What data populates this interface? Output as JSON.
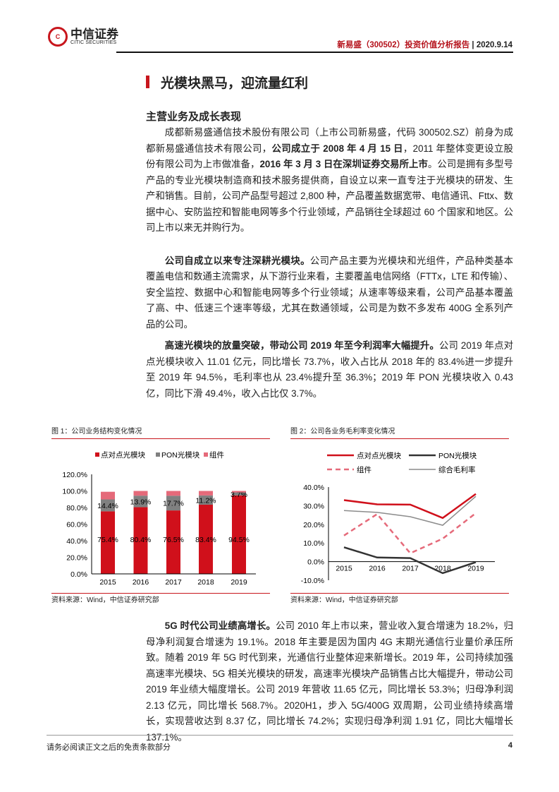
{
  "header": {
    "logo_cn": "中信证券",
    "logo_en": "CITIC SECURITIES",
    "report": "新易盛（300502）投资价值分析报告",
    "sep": "|",
    "date": "2020.9.14"
  },
  "title": "光模块黑马，迎流量红利",
  "section": "主营业务及成长表现",
  "paragraphs": [
    [
      {
        "t": "成都新易盛通信技术股份有限公司（上市公司新易盛，代码 300502.SZ）前身为成都新易盛通信技术有限公司，"
      },
      {
        "t": "公司成立于 2008 年 4 月 15 日",
        "b": true
      },
      {
        "t": "，2011 年整体变更设立股份有限公司为上市做准备，"
      },
      {
        "t": "2016 年 3 月 3 日在深圳证券交易所上市",
        "b": true
      },
      {
        "t": "。公司是拥有多型号产品的专业光模块制造商和技术服务提供商，自设立以来一直专注于光模块的研发、生产和销售。目前，公司产品型号超过 2,800 种，产品覆盖数据宽带、电信通讯、Fttx、数据中心、安防监控和智能电网等多个行业领域，产品销往全球超过 60 个国家和地区。公司上市以来无并购行为。"
      }
    ],
    [
      {
        "t": "公司自成立以来专注深耕光模块。",
        "b": true
      },
      {
        "t": "公司产品主要为光模块和光组件，产品种类基本覆盖电信和数通主流需求，从下游行业来看，主要覆盖电信网络（FTTx，LTE 和传输）、安全监控、数据中心和智能电网等多个行业领域；从速率等级来看，公司产品基本覆盖了高、中、低速三个速率等级，尤其在数通领域，公司是为数不多发布 400G 全系列产品的公司。"
      }
    ],
    [
      {
        "t": "高速光模块的放量突破，带动公司 2019 年至今利润率大幅提升。",
        "b": true
      },
      {
        "t": "公司 2019 年点对点光模块收入 11.01 亿元，同比增长 73.7%，收入占比从 2018 年的 83.4%进一步提升至 2019 年 94.5%，毛利率也从 23.4%提升至 36.3%；2019 年 PON 光模块收入 0.43 亿，同比下滑 49.4%，收入占比仅 3.7%。"
      }
    ],
    [
      {
        "t": "5G 时代公司业绩高增长。",
        "b": true
      },
      {
        "t": "公司 2010 年上市以来，营业收入复合增速为 18.2%，归母净利润复合增速为 19.1%。2018 年主要是因为国内 4G 末期光通信行业量价承压所致。随着 2019 年 5G 时代到来，光通信行业整体迎来新增长。2019 年，公司持续加强高速率光模块、5G 相关光模块的研发，高速率光模块产品销售占比大幅提升，带动公司 2019 年业绩大幅度增长。公司 2019 年营收 11.65 亿元，同比增长 53.3%；归母净利润 2.13 亿元，同比增长 568.7%。2020H1，步入 5G/400G 双周期，公司业绩持续高增长，实现营收达到 8.37 亿，同比增长 74.2%；实现归母净利润 1.91 亿，同比大幅增长 137.1%。"
      }
    ]
  ],
  "figures": [
    {
      "caption": "图 1：公司业务结构变化情况",
      "source": "资料来源：Wind，中信证券研究部"
    },
    {
      "caption": "图 2：公司各业务毛利率变化情况",
      "source": "资料来源：Wind，中信证券研究部"
    }
  ],
  "chart_data": [
    {
      "type": "bar",
      "stacked": true,
      "categories": [
        "2015",
        "2016",
        "2017",
        "2018",
        "2019"
      ],
      "yticks": [
        "0.0%",
        "20.0%",
        "40.0%",
        "60.0%",
        "80.0%",
        "100.0%",
        "120.0%"
      ],
      "ylim": [
        0,
        120
      ],
      "legend": "top",
      "series": [
        {
          "name": "点对点光模块",
          "color": "#d0101b",
          "values": [
            75.4,
            80.4,
            76.5,
            83.4,
            94.5
          ],
          "labels": [
            "75.4%",
            "80.4%",
            "76.5%",
            "83.4%",
            "94.5%"
          ]
        },
        {
          "name": "PON光模块",
          "color": "#808080",
          "values": [
            14.4,
            13.9,
            17.7,
            11.2,
            3.7
          ],
          "labels": [
            "14.4%",
            "13.9%",
            "17.7%",
            "11.2%",
            "3.7%"
          ]
        },
        {
          "name": "组件",
          "color": "#e56a7a",
          "values": [
            9.2,
            5.7,
            5.8,
            5.4,
            1.8
          ],
          "labels": []
        }
      ]
    },
    {
      "type": "line",
      "categories": [
        "2015",
        "2016",
        "2017",
        "2018",
        "2019"
      ],
      "yticks": [
        "-10.0%",
        "0.0%",
        "10.0%",
        "20.0%",
        "30.0%",
        "40.0%"
      ],
      "ylim": [
        -10,
        40
      ],
      "legend": "top",
      "series": [
        {
          "name": "点对点光模块",
          "color": "#d0101b",
          "style": "solid",
          "values": [
            33.0,
            30.7,
            30.6,
            23.4,
            36.3
          ]
        },
        {
          "name": "PON光模块",
          "color": "#333333",
          "style": "solid",
          "values": [
            7.7,
            2.2,
            1.9,
            -6.2,
            -0.3
          ]
        },
        {
          "name": "组件",
          "color": "#e56a7a",
          "style": "dashed",
          "values": [
            14.0,
            25.5,
            4.5,
            12.3,
            26.0
          ]
        },
        {
          "name": "综合毛利率",
          "color": "#8c8c8c",
          "style": "thin",
          "values": [
            27.4,
            26.4,
            24.1,
            19.5,
            35.0
          ]
        }
      ]
    }
  ],
  "footer": {
    "disclaimer": "请务必阅读正文之后的免责条款部分",
    "page": "4"
  }
}
